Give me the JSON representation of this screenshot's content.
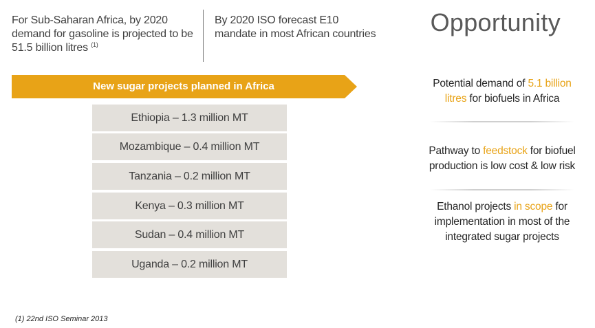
{
  "intro": {
    "left_text": "For Sub-Saharan Africa, by 2020 demand for gasoline is projected to be 51.5 billion litres",
    "left_footnote_ref": "(1)",
    "right_text": "By 2020 ISO forecast E10 mandate in most African  countries"
  },
  "heading": "Opportunity",
  "banner": {
    "label": "New sugar projects planned in Africa",
    "color": "#e8a317"
  },
  "projects": [
    "Ethiopia – 1.3 million MT",
    "Mozambique – 0.4 million MT",
    "Tanzania – 0.2 million MT",
    "Kenya – 0.3 million MT",
    "Sudan – 0.4 million MT",
    "Uganda – 0.2 million MT"
  ],
  "opportunities": [
    {
      "before": "Potential demand of ",
      "highlight": "5.1 billion litres",
      "after": " for biofuels in Africa"
    },
    {
      "before": "Pathway to ",
      "highlight": "feedstock",
      "after": " for biofuel production is low cost & low risk"
    },
    {
      "before": "Ethanol projects ",
      "highlight": "in scope",
      "after": " for implementation in most of the integrated sugar projects"
    }
  ],
  "footnote": "(1) 22nd ISO Seminar 2013",
  "colors": {
    "accent": "#e8a317",
    "box": "#e3e0db",
    "text": "#404040"
  }
}
